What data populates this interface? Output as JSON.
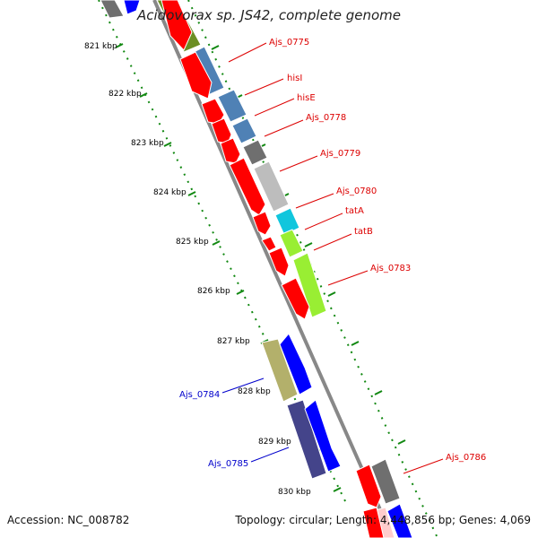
{
  "title": "Acidovorax sp. JS42, complete genome",
  "footer": {
    "accession": "Accession: NC_008782",
    "topology": "Topology: circular; Length: 4,448,856 bp; Genes: 4,069"
  },
  "scale_labels": [
    "821 kbp",
    "822 kbp",
    "823 kbp",
    "824 kbp",
    "825 kbp",
    "826 kbp",
    "827 kbp",
    "828 kbp",
    "829 kbp",
    "830 kbp"
  ],
  "gene_labels_forward": [
    "Ajs_0775",
    "hisI",
    "hisE",
    "Ajs_0778",
    "Ajs_0779",
    "Ajs_0780",
    "tatA",
    "tatB",
    "Ajs_0783",
    "Ajs_0786"
  ],
  "gene_labels_reverse": [
    "Ajs_0784",
    "Ajs_0785"
  ],
  "colors": {
    "forward_gene": "#ff0000",
    "reverse_gene": "#0000ff",
    "forward_label": "#dd0000",
    "reverse_label": "#0000cc",
    "backbone": "#888888",
    "tick": "#118811",
    "cog_olive": "#6b8e23",
    "cog_steelblue": "#4f81b5",
    "cog_gray": "#6f6f6f",
    "cog_lightgray": "#bdbdbd",
    "cog_cyan": "#11c6dd",
    "cog_lime": "#99ee33",
    "cog_khaki": "#b3b06b",
    "cog_darkslate": "#44448a"
  }
}
